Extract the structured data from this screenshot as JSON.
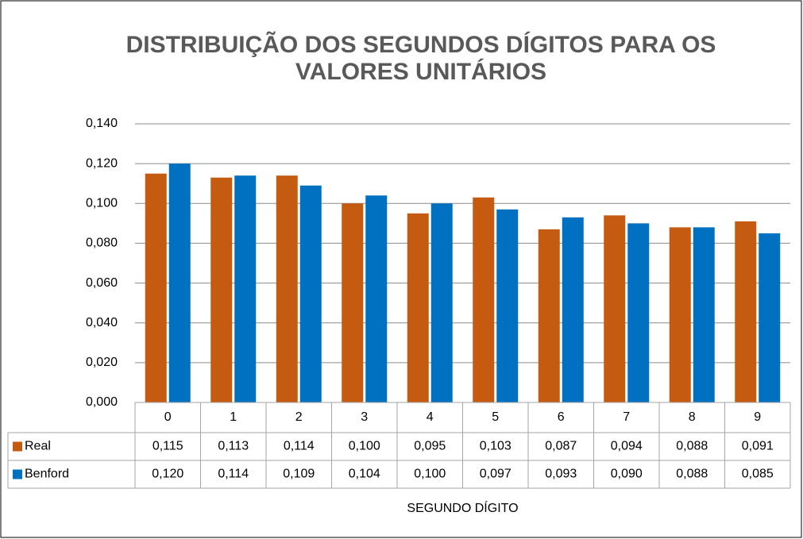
{
  "chart_data": {
    "type": "bar",
    "title": "DISTRIBUIÇÃO DOS SEGUNDOS DÍGITOS PARA OS VALORES UNITÁRIOS",
    "x_label": "SEGUNDO DÍGITO",
    "categories": [
      "0",
      "1",
      "2",
      "3",
      "4",
      "5",
      "6",
      "7",
      "8",
      "9"
    ],
    "series": [
      {
        "name": "Real",
        "color": "#c55a11",
        "values": [
          0.115,
          0.113,
          0.114,
          0.1,
          0.095,
          0.103,
          0.087,
          0.094,
          0.088,
          0.091
        ],
        "value_labels": [
          "0,115",
          "0,113",
          "0,114",
          "0,100",
          "0,095",
          "0,103",
          "0,087",
          "0,094",
          "0,088",
          "0,091"
        ]
      },
      {
        "name": "Benford",
        "color": "#0070c0",
        "values": [
          0.12,
          0.114,
          0.109,
          0.104,
          0.1,
          0.097,
          0.093,
          0.09,
          0.088,
          0.085
        ],
        "value_labels": [
          "0,120",
          "0,114",
          "0,109",
          "0,104",
          "0,100",
          "0,097",
          "0,093",
          "0,090",
          "0,088",
          "0,085"
        ]
      }
    ],
    "ylim": [
      0,
      0.14
    ],
    "yticks": [
      {
        "value": 0,
        "label": "0,000"
      },
      {
        "value": 0.02,
        "label": "0,020"
      },
      {
        "value": 0.04,
        "label": "0,040"
      },
      {
        "value": 0.06,
        "label": "0,060"
      },
      {
        "value": 0.08,
        "label": "0,080"
      },
      {
        "value": 0.1,
        "label": "0,100"
      },
      {
        "value": 0.12,
        "label": "0,120"
      },
      {
        "value": 0.14,
        "label": "0,140"
      }
    ],
    "grid": true,
    "data_table": true
  }
}
